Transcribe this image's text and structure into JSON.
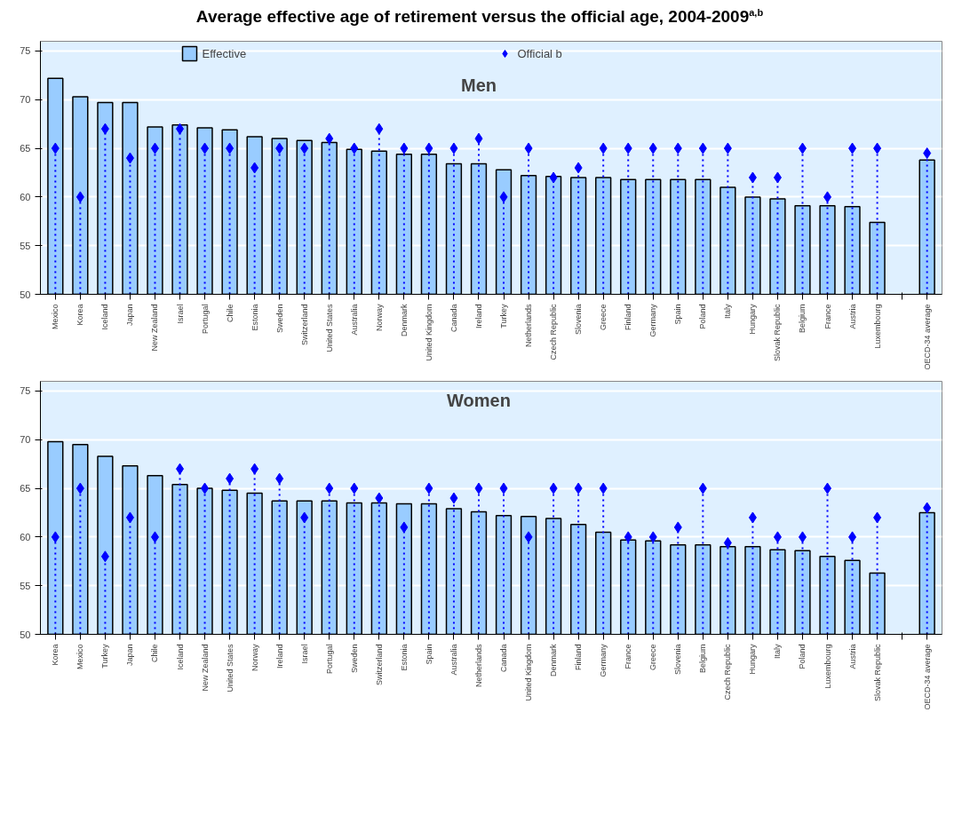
{
  "chart_data": [
    {
      "type": "bar",
      "title": "Average effective age of retirement versus the official age, 2004-2009$^{a,b}$",
      "subtitle": "Men",
      "categories": [
        "Mexico",
        "Korea",
        "Iceland",
        "Japan",
        "New Zealand",
        "Israel",
        "Portugal",
        "Chile",
        "Estonia",
        "Sweden",
        "Switzerland",
        "United States",
        "Australia",
        "Norway",
        "Denmark",
        "United Kingdom",
        "Canada",
        "Ireland",
        "Turkey",
        "Netherlands",
        "Czech Republic",
        "Slovenia",
        "Greece",
        "Finland",
        "Germany",
        "Spain",
        "Poland",
        "Italy",
        "Hungary",
        "Slovak Republic",
        "Belgium",
        "France",
        "Austria",
        "Luxembourg",
        null,
        "OECD-34 average"
      ],
      "series": [
        {
          "name": "Effective",
          "color": "#99ccff",
          "values": [
            72.2,
            70.3,
            69.7,
            69.7,
            67.2,
            67.4,
            67.1,
            66.9,
            66.2,
            66.0,
            65.8,
            65.6,
            64.9,
            64.7,
            64.4,
            64.4,
            63.4,
            63.4,
            62.8,
            62.2,
            62.1,
            62.0,
            62.0,
            61.8,
            61.8,
            61.8,
            61.8,
            61.0,
            60.0,
            59.8,
            59.1,
            59.1,
            59.0,
            57.4,
            null,
            63.8
          ]
        },
        {
          "name": "Official b",
          "type": "lollipop",
          "color": "#0000ff",
          "marker": "diamond",
          "line_style": "dotted",
          "values": [
            65,
            60,
            67,
            64,
            65,
            67,
            65,
            65,
            63,
            65,
            65,
            66,
            65,
            67,
            65,
            65,
            65,
            66,
            60,
            65,
            62,
            63,
            65,
            65,
            65,
            65,
            65,
            65,
            62,
            62,
            65,
            60,
            65,
            65,
            null,
            64.5
          ]
        }
      ],
      "ylim": [
        50,
        76
      ],
      "yticks": [
        50,
        55,
        60,
        65,
        70,
        75
      ],
      "grid": "y",
      "legend": "top"
    },
    {
      "type": "bar",
      "subtitle": "Women",
      "categories": [
        "Korea",
        "Mexico",
        "Turkey",
        "Japan",
        "Chile",
        "Iceland",
        "New Zealand",
        "United States",
        "Norway",
        "Ireland",
        "Israel",
        "Portugal",
        "Sweden",
        "Switzerland",
        "Estonia",
        "Spain",
        "Australia",
        "Netherlands",
        "Canada",
        "United Kingdom",
        "Denmark",
        "Finland",
        "Germany",
        "France",
        "Greece",
        "Slovenia",
        "Belgium",
        "Czech Republic",
        "Hungary",
        "Italy",
        "Poland",
        "Luxembourg",
        "Austria",
        "Slovak Republic",
        null,
        "OECD-34 average"
      ],
      "series": [
        {
          "color": "#99ccff",
          "values": [
            69.8,
            69.5,
            68.3,
            67.3,
            66.3,
            65.4,
            65.0,
            64.8,
            64.5,
            63.7,
            63.7,
            63.7,
            63.5,
            63.5,
            63.4,
            63.4,
            62.9,
            62.6,
            62.2,
            62.1,
            61.9,
            61.3,
            60.5,
            59.7,
            59.6,
            59.2,
            59.2,
            59.0,
            59.0,
            58.7,
            58.6,
            58.0,
            57.6,
            56.3,
            null,
            62.5
          ]
        },
        {
          "type": "lollipop",
          "color": "#0000ff",
          "marker": "diamond",
          "line_style": "dotted",
          "values": [
            60,
            65,
            58,
            62,
            60,
            67,
            65,
            66,
            67,
            66,
            62,
            65,
            65,
            64,
            61,
            65,
            64,
            65,
            65,
            60,
            65,
            65,
            65,
            60,
            60,
            61,
            65,
            59.4,
            62,
            60,
            60,
            65,
            60,
            62,
            null,
            63
          ]
        }
      ],
      "ylim": [
        50,
        76
      ],
      "yticks": [
        50,
        55,
        60,
        65,
        70,
        75
      ],
      "grid": "y"
    }
  ]
}
